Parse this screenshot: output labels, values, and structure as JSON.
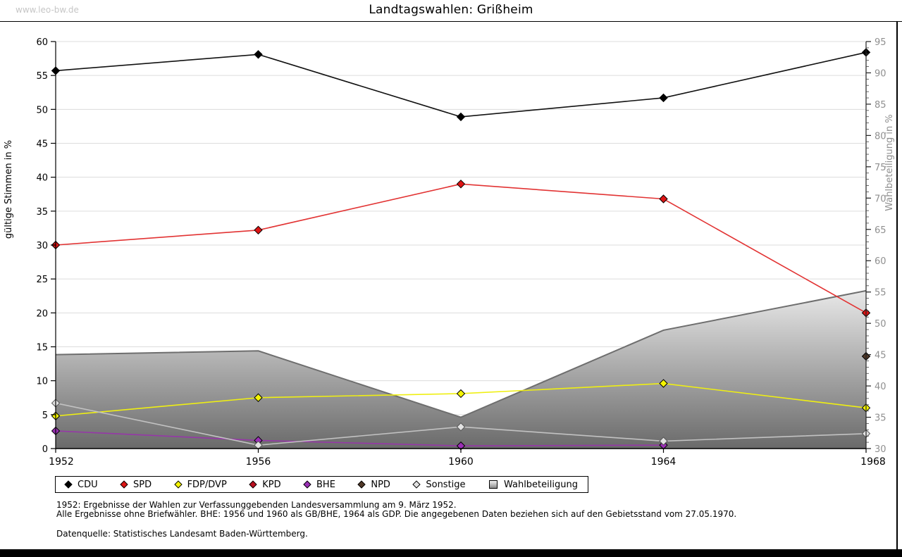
{
  "page": {
    "logo": "www.leo-bw.de",
    "title": "Landtagswahlen: Grißheim",
    "footnotes": [
      "1952: Ergebnisse der Wahlen zur Verfassunggebenden Landesversammlung am 9. März 1952.",
      "Alle Ergebnisse ohne Briefwähler. BHE: 1956 und 1960 als GB/BHE, 1964 als GDP. Die angegebenen Daten beziehen sich auf den Gebietsstand vom 27.05.1970."
    ],
    "source": "Datenquelle: Statistisches Landesamt Baden-Württemberg."
  },
  "chart_data": {
    "type": "line",
    "x": [
      1952,
      1956,
      1960,
      1964,
      1968
    ],
    "left_axis": {
      "label": "gültige Stimmen in %",
      "min": 0,
      "max": 60,
      "tick_step": 5
    },
    "right_axis": {
      "label": "Wahlbeteiligung in %",
      "min": 30,
      "max": 95,
      "tick_step": 5,
      "minor_step": 1
    },
    "grid": "horizontal",
    "legend_position": "bottom",
    "series": [
      {
        "name": "CDU",
        "axis": "left",
        "kind": "line",
        "color": "#111111",
        "marker_color": "#000000",
        "values": [
          55.7,
          58.1,
          48.9,
          51.7,
          58.4
        ]
      },
      {
        "name": "SPD",
        "axis": "left",
        "kind": "line",
        "color": "#e23333",
        "marker_color": "#dd1414",
        "values": [
          30.0,
          32.2,
          39.0,
          36.8,
          20.0
        ]
      },
      {
        "name": "FDP/DVP",
        "axis": "left",
        "kind": "line",
        "color": "#ededed00",
        "marker_color": "#f5f500",
        "line_color": "#efef12",
        "values": [
          4.8,
          7.5,
          8.1,
          9.6,
          6.0
        ]
      },
      {
        "name": "KPD",
        "axis": "left",
        "kind": "line",
        "color": "#bb0f1f",
        "marker_color": "#bb0f1f",
        "values": [
          null,
          null,
          null,
          null,
          null
        ]
      },
      {
        "name": "BHE",
        "axis": "left",
        "kind": "line",
        "color": "#9a2fb5",
        "marker_color": "#9a2fb5",
        "line_color": "#9637a8",
        "values": [
          2.6,
          1.2,
          0.4,
          0.5,
          null
        ]
      },
      {
        "name": "NPD",
        "axis": "left",
        "kind": "line",
        "color": "#503828",
        "marker_color": "#503828",
        "values": [
          null,
          null,
          null,
          null,
          13.6
        ]
      },
      {
        "name": "Sonstige",
        "axis": "left",
        "kind": "line",
        "color": "#d9d9d9",
        "marker_color": "#e2e2e2",
        "line_color": "#c2c2c2",
        "values": [
          6.7,
          0.5,
          3.2,
          1.1,
          2.2
        ]
      },
      {
        "name": "Wahlbeteiligung",
        "axis": "right",
        "kind": "area",
        "color": "#9a9a9a",
        "edge_color": "#6e6e6e",
        "values": [
          45.0,
          45.6,
          35.0,
          48.9,
          55.2
        ]
      }
    ]
  }
}
